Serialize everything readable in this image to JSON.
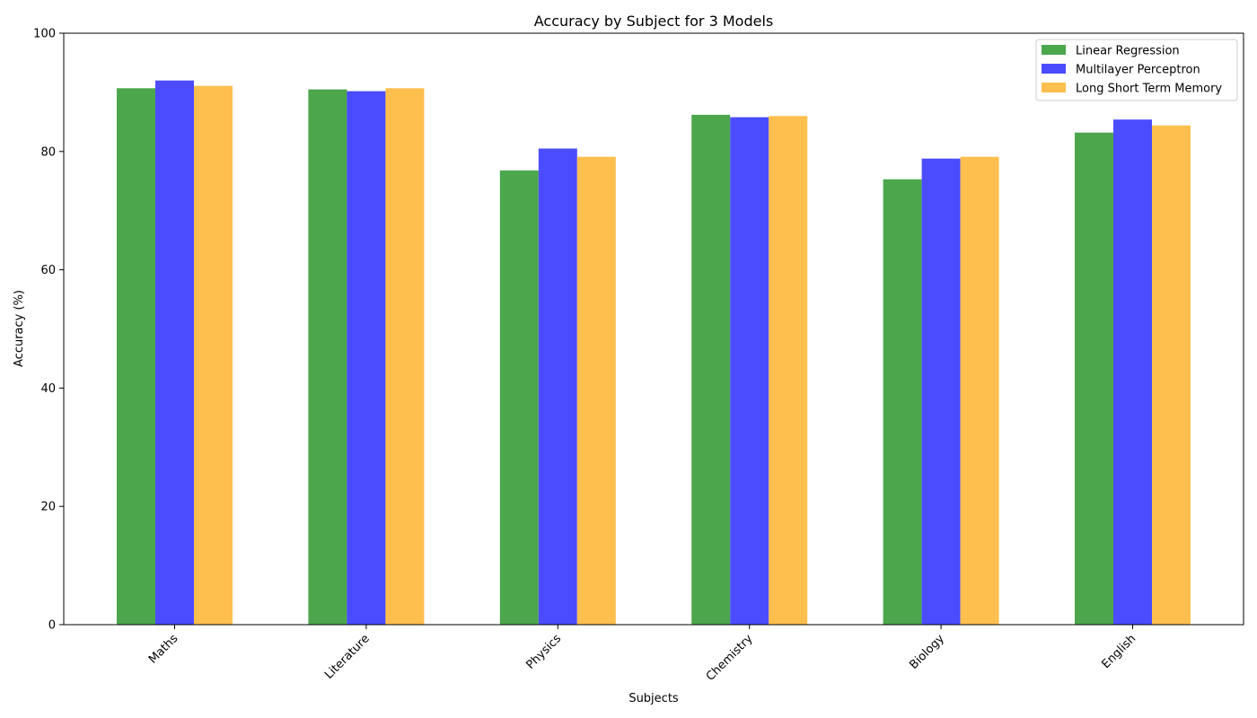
{
  "chart_data": {
    "type": "bar",
    "title": "Accuracy by Subject for 3 Models",
    "xlabel": "Subjects",
    "ylabel": "Accuracy (%)",
    "ylim": [
      0,
      100
    ],
    "yticks": [
      0,
      20,
      40,
      60,
      80,
      100
    ],
    "grid": false,
    "legend_position": "top-right",
    "categories": [
      "Maths",
      "Literature",
      "Physics",
      "Chemistry",
      "Biology",
      "English"
    ],
    "series": [
      {
        "name": "Linear Regression",
        "color": "#4ca64c",
        "values": [
          90.7,
          90.5,
          76.8,
          86.2,
          75.3,
          83.2
        ]
      },
      {
        "name": "Multilayer Perceptron",
        "color": "#4c4cff",
        "values": [
          92.0,
          90.2,
          80.5,
          85.8,
          78.8,
          85.4
        ]
      },
      {
        "name": "Long Short Term Memory",
        "color": "#ffbf4f",
        "values": [
          91.1,
          90.7,
          79.1,
          86.0,
          79.1,
          84.4
        ]
      }
    ]
  }
}
